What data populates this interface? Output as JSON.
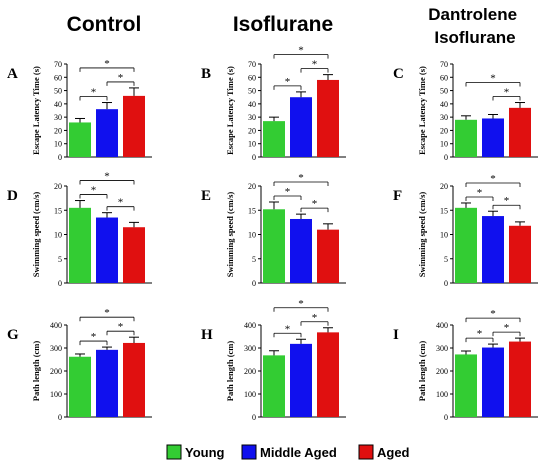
{
  "columns": [
    "Control",
    "Isoflurane",
    "Dantrolene\nIsoflurane"
  ],
  "legend": [
    {
      "label": "Young",
      "color": "#33cc33"
    },
    {
      "label": "Middle Aged",
      "color": "#1010ee"
    },
    {
      "label": "Aged",
      "color": "#e01010"
    }
  ],
  "colors": {
    "young": "#33cc33",
    "middle_aged": "#1010ee",
    "aged": "#e01010"
  },
  "chart_data": [
    {
      "type": "bar",
      "panel": "A",
      "column": 0,
      "row": 0,
      "categories": [
        "Young",
        "Middle Aged",
        "Aged"
      ],
      "values": [
        26,
        36,
        46
      ],
      "errors": [
        3,
        5,
        6
      ],
      "ylabel": "Escape Latency Time (s)",
      "ylim": [
        0,
        70
      ],
      "yticks": [
        0,
        10,
        20,
        30,
        40,
        50,
        60,
        70
      ],
      "significance": [
        [
          0,
          1
        ],
        [
          1,
          2
        ],
        [
          0,
          2
        ]
      ]
    },
    {
      "type": "bar",
      "panel": "B",
      "column": 1,
      "row": 0,
      "categories": [
        "Young",
        "Middle Aged",
        "Aged"
      ],
      "values": [
        27,
        45,
        58
      ],
      "errors": [
        3,
        4,
        4
      ],
      "ylabel": "Escape Latency Time (s)",
      "ylim": [
        0,
        70
      ],
      "yticks": [
        0,
        10,
        20,
        30,
        40,
        50,
        60,
        70
      ],
      "significance": [
        [
          0,
          1
        ],
        [
          1,
          2
        ],
        [
          0,
          2
        ]
      ]
    },
    {
      "type": "bar",
      "panel": "C",
      "column": 2,
      "row": 0,
      "categories": [
        "Young",
        "Middle Aged",
        "Aged"
      ],
      "values": [
        28,
        29,
        37
      ],
      "errors": [
        3,
        3,
        4
      ],
      "ylabel": "Escape Latency Time (s)",
      "ylim": [
        0,
        70
      ],
      "yticks": [
        0,
        10,
        20,
        30,
        40,
        50,
        60,
        70
      ],
      "significance": [
        [
          1,
          2
        ],
        [
          0,
          2
        ]
      ]
    },
    {
      "type": "bar",
      "panel": "D",
      "column": 0,
      "row": 1,
      "categories": [
        "Young",
        "Middle Aged",
        "Aged"
      ],
      "values": [
        15.5,
        13.5,
        11.5
      ],
      "errors": [
        1.5,
        1,
        1
      ],
      "ylabel": "Swimming speed (cm/s)",
      "ylim": [
        0,
        20
      ],
      "yticks": [
        0,
        5,
        10,
        15,
        20
      ],
      "significance": [
        [
          0,
          1
        ],
        [
          1,
          2
        ],
        [
          0,
          2
        ]
      ]
    },
    {
      "type": "bar",
      "panel": "E",
      "column": 1,
      "row": 1,
      "categories": [
        "Young",
        "Middle Aged",
        "Aged"
      ],
      "values": [
        15.2,
        13.2,
        11
      ],
      "errors": [
        1.5,
        1,
        1.2
      ],
      "ylabel": "Swimming speed (cm/s)",
      "ylim": [
        0,
        20
      ],
      "yticks": [
        0,
        5,
        10,
        15,
        20
      ],
      "significance": [
        [
          0,
          1
        ],
        [
          1,
          2
        ],
        [
          0,
          2
        ]
      ]
    },
    {
      "type": "bar",
      "panel": "F",
      "column": 2,
      "row": 1,
      "categories": [
        "Young",
        "Middle Aged",
        "Aged"
      ],
      "values": [
        15.5,
        13.8,
        11.8
      ],
      "errors": [
        1,
        1,
        0.8
      ],
      "ylabel": "Swimming speed (cm/s)",
      "ylim": [
        0,
        20
      ],
      "yticks": [
        0,
        5,
        10,
        15,
        20
      ],
      "significance": [
        [
          0,
          1
        ],
        [
          1,
          2
        ],
        [
          0,
          2
        ]
      ]
    },
    {
      "type": "bar",
      "panel": "G",
      "column": 0,
      "row": 2,
      "categories": [
        "Young",
        "Middle Aged",
        "Aged"
      ],
      "values": [
        262,
        292,
        322
      ],
      "errors": [
        12,
        12,
        25
      ],
      "ylabel": "Path length (cm)",
      "ylim": [
        0,
        400
      ],
      "yticks": [
        0,
        100,
        200,
        300,
        400
      ],
      "significance": [
        [
          0,
          1
        ],
        [
          1,
          2
        ],
        [
          0,
          2
        ]
      ]
    },
    {
      "type": "bar",
      "panel": "H",
      "column": 1,
      "row": 2,
      "categories": [
        "Young",
        "Middle Aged",
        "Aged"
      ],
      "values": [
        268,
        318,
        368
      ],
      "errors": [
        20,
        20,
        20
      ],
      "ylabel": "Path length (cm)",
      "ylim": [
        0,
        400
      ],
      "yticks": [
        0,
        100,
        200,
        300,
        400
      ],
      "significance": [
        [
          0,
          1
        ],
        [
          1,
          2
        ],
        [
          0,
          2
        ]
      ]
    },
    {
      "type": "bar",
      "panel": "I",
      "column": 2,
      "row": 2,
      "categories": [
        "Young",
        "Middle Aged",
        "Aged"
      ],
      "values": [
        272,
        302,
        328
      ],
      "errors": [
        15,
        15,
        15
      ],
      "ylabel": "Path length (cm)",
      "ylim": [
        0,
        400
      ],
      "yticks": [
        0,
        100,
        200,
        300,
        400
      ],
      "significance": [
        [
          0,
          1
        ],
        [
          1,
          2
        ],
        [
          0,
          2
        ]
      ]
    }
  ]
}
